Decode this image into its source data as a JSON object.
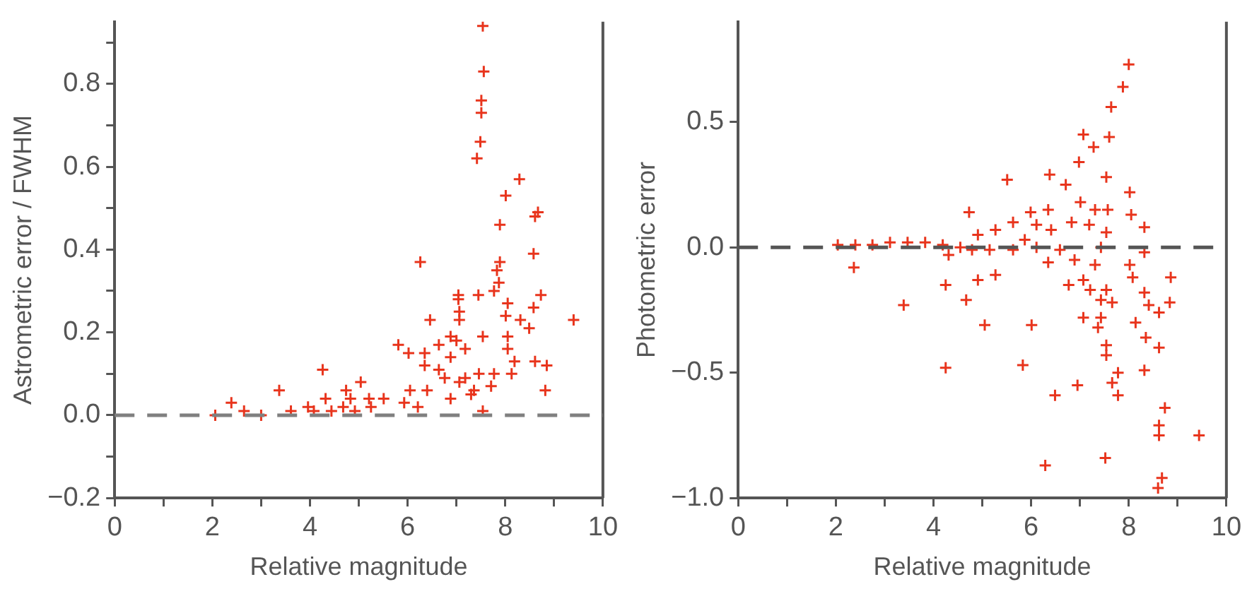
{
  "chart_data": [
    {
      "type": "scatter",
      "xlabel": "Relative magnitude",
      "ylabel": "Astrometric error / FWHM",
      "marker": "cross",
      "grid": false,
      "legend": false,
      "xlim": [
        0,
        10
      ],
      "xticks": [
        0,
        {
          "value": 1,
          "label": null
        },
        2,
        {
          "value": 3,
          "label": null
        },
        4,
        {
          "value": 5,
          "label": null
        },
        6,
        {
          "value": 7,
          "label": null
        },
        8,
        {
          "value": 9,
          "label": null
        },
        10
      ],
      "ylim": [
        -0.2,
        0.95
      ],
      "yticks": [
        {
          "value": -0.2,
          "label": "−0.2"
        },
        {
          "value": -0.1,
          "label": null
        },
        {
          "value": 0,
          "label": "0.0"
        },
        {
          "value": 0.1,
          "label": null
        },
        {
          "value": 0.2,
          "label": "0.2"
        },
        {
          "value": 0.3,
          "label": null
        },
        {
          "value": 0.4,
          "label": "0.4"
        },
        {
          "value": 0.5,
          "label": null
        },
        {
          "value": 0.6,
          "label": "0.6"
        },
        {
          "value": 0.7,
          "label": null
        },
        {
          "value": 0.8,
          "label": "0.8"
        },
        {
          "value": 0.9,
          "label": null
        }
      ],
      "ref_lines": [
        {
          "axis": "y",
          "value": 0,
          "color": "#808080",
          "line_style": "dashed"
        }
      ],
      "series": [
        {
          "color": "#e8341c",
          "x": [
            7.54,
            7.56,
            7.51,
            7.51,
            7.49,
            7.42,
            8.29,
            8.01,
            8.67,
            8.61,
            7.89,
            8.58,
            6.26,
            7.89,
            7.83,
            7.87,
            7.77,
            7.04,
            8.73,
            7.45,
            8.05,
            7.04,
            7.06,
            8.58,
            6.46,
            8.01,
            8.31,
            9.4,
            8.49,
            7.06,
            6.88,
            7.54,
            8.05,
            6.64,
            7.0,
            8.05,
            7.18,
            5.81,
            6.02,
            6.35,
            6.88,
            8.19,
            8.61,
            8.85,
            6.35,
            6.64,
            7.46,
            7.77,
            8.13,
            4.26,
            6.76,
            7.18,
            7.06,
            6.4,
            7.36,
            7.71,
            8.82,
            5.04,
            3.37,
            4.74,
            6.05,
            6.88,
            7.3,
            4.32,
            4.83,
            5.21,
            5.51,
            2.39,
            5.93,
            3.96,
            4.68,
            5.25,
            6.21,
            7.54,
            3.61,
            4.44,
            2.65,
            2.06,
            3.0,
            4.08,
            4.92
          ],
          "values": [
            0.94,
            0.83,
            0.76,
            0.73,
            0.66,
            0.62,
            0.57,
            0.53,
            0.49,
            0.48,
            0.46,
            0.39,
            0.37,
            0.37,
            0.35,
            0.32,
            0.3,
            0.29,
            0.29,
            0.29,
            0.27,
            0.28,
            0.25,
            0.26,
            0.23,
            0.24,
            0.23,
            0.23,
            0.21,
            0.23,
            0.19,
            0.19,
            0.19,
            0.17,
            0.18,
            0.16,
            0.16,
            0.17,
            0.15,
            0.15,
            0.14,
            0.13,
            0.13,
            0.12,
            0.12,
            0.11,
            0.1,
            0.1,
            0.1,
            0.11,
            0.09,
            0.09,
            0.08,
            0.06,
            0.06,
            0.07,
            0.06,
            0.08,
            0.06,
            0.06,
            0.06,
            0.04,
            0.05,
            0.04,
            0.04,
            0.04,
            0.04,
            0.03,
            0.03,
            0.02,
            0.02,
            0.02,
            0.02,
            0.01,
            0.01,
            0.01,
            0.01,
            0.0,
            0.0,
            0.01,
            0.01
          ]
        }
      ]
    },
    {
      "type": "scatter",
      "xlabel": "Relative magnitude",
      "ylabel": "Photometric error",
      "marker": "cross",
      "grid": false,
      "legend": false,
      "xlim": [
        0,
        10
      ],
      "xticks": [
        0,
        {
          "value": 1,
          "label": null
        },
        2,
        {
          "value": 3,
          "label": null
        },
        4,
        {
          "value": 5,
          "label": null
        },
        6,
        {
          "value": 7,
          "label": null
        },
        8,
        {
          "value": 9,
          "label": null
        },
        10
      ],
      "ylim": [
        -1.0,
        0.9
      ],
      "yticks": [
        {
          "value": -1.0,
          "label": "−1.0"
        },
        {
          "value": -0.5,
          "label": "−0.5"
        },
        {
          "value": 0,
          "label": "0.0"
        },
        {
          "value": 0.5,
          "label": "0.5"
        }
      ],
      "ref_lines": [
        {
          "axis": "y",
          "value": 0,
          "color": "#555555",
          "line_style": "dashed"
        }
      ],
      "series": [
        {
          "color": "#e8341c",
          "x": [
            8.0,
            7.88,
            7.64,
            7.07,
            7.6,
            7.28,
            6.98,
            5.51,
            7.54,
            6.38,
            6.71,
            8.02,
            4.73,
            5.99,
            6.35,
            7.01,
            7.31,
            7.57,
            8.05,
            5.63,
            6.11,
            6.83,
            7.19,
            8.32,
            6.41,
            7.54,
            5.27,
            4.91,
            5.87,
            2.04,
            2.4,
            2.75,
            3.11,
            3.47,
            3.83,
            4.19,
            4.55,
            4.79,
            5.15,
            5.63,
            6.11,
            6.59,
            7.43,
            4.31,
            8.32,
            6.89,
            6.35,
            7.31,
            8.02,
            2.37,
            8.08,
            8.86,
            4.91,
            5.27,
            6.77,
            7.07,
            7.21,
            4.25,
            7.54,
            8.32,
            7.66,
            7.43,
            4.67,
            8.84,
            3.39,
            8.41,
            8.62,
            7.07,
            7.43,
            8.14,
            6.01,
            5.05,
            7.37,
            8.35,
            7.54,
            8.62,
            7.54,
            8.32,
            4.25,
            5.83,
            7.78,
            6.95,
            7.66,
            6.49,
            7.78,
            8.74,
            8.62,
            8.62,
            9.44,
            7.52,
            6.29,
            8.68,
            8.6
          ],
          "values": [
            0.73,
            0.64,
            0.56,
            0.45,
            0.44,
            0.4,
            0.34,
            0.27,
            0.28,
            0.29,
            0.25,
            0.22,
            0.14,
            0.14,
            0.15,
            0.18,
            0.15,
            0.15,
            0.13,
            0.1,
            0.09,
            0.1,
            0.09,
            0.08,
            0.07,
            0.06,
            0.07,
            0.05,
            0.03,
            0.01,
            0.01,
            0.01,
            0.02,
            0.02,
            0.02,
            0.01,
            0.0,
            -0.01,
            -0.01,
            -0.01,
            0.0,
            -0.01,
            0.0,
            -0.03,
            -0.02,
            -0.05,
            -0.06,
            -0.07,
            -0.07,
            -0.08,
            -0.12,
            -0.12,
            -0.13,
            -0.11,
            -0.15,
            -0.13,
            -0.17,
            -0.15,
            -0.17,
            -0.18,
            -0.22,
            -0.21,
            -0.21,
            -0.22,
            -0.23,
            -0.23,
            -0.26,
            -0.28,
            -0.28,
            -0.3,
            -0.31,
            -0.31,
            -0.32,
            -0.36,
            -0.39,
            -0.4,
            -0.43,
            -0.49,
            -0.48,
            -0.47,
            -0.5,
            -0.55,
            -0.54,
            -0.59,
            -0.59,
            -0.64,
            -0.71,
            -0.75,
            -0.75,
            -0.84,
            -0.87,
            -0.92,
            -0.96
          ]
        }
      ]
    }
  ]
}
